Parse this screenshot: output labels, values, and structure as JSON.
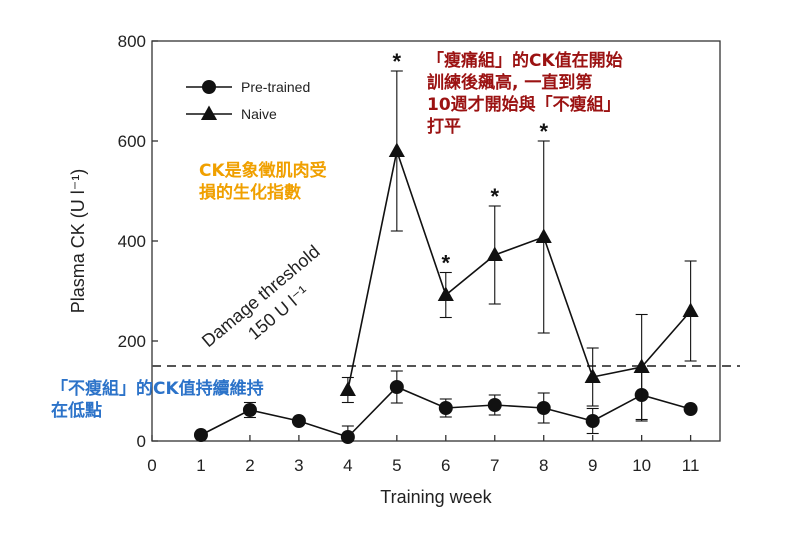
{
  "chart_data": {
    "type": "line",
    "xlabel": "Training week",
    "ylabel": "Plasma CK (U l⁻¹)",
    "xlim": [
      0,
      11.6
    ],
    "ylim": [
      0,
      800
    ],
    "xticks": [
      "0",
      "1",
      "2",
      "3",
      "4",
      "5",
      "6",
      "7",
      "8",
      "9",
      "10",
      "11"
    ],
    "yticks": [
      "0",
      "200",
      "400",
      "600",
      "800"
    ],
    "grid": false,
    "legend_position": "top-left",
    "series": [
      {
        "name": "Pre-trained",
        "marker": "circle",
        "x": [
          1,
          2,
          3,
          4,
          5,
          6,
          7,
          8,
          9,
          10,
          11
        ],
        "values": [
          12,
          62,
          40,
          8,
          108,
          66,
          72,
          66,
          40,
          92,
          64
        ],
        "errors": [
          5,
          15,
          5,
          22,
          32,
          18,
          20,
          30,
          25,
          52,
          5
        ]
      },
      {
        "name": "Naive",
        "marker": "triangle",
        "x": [
          4,
          5,
          6,
          7,
          8,
          9,
          10,
          11
        ],
        "values": [
          102,
          580,
          292,
          372,
          408,
          128,
          148,
          260
        ],
        "errors": [
          25,
          160,
          45,
          98,
          192,
          58,
          105,
          100
        ]
      }
    ],
    "significance_markers": [
      {
        "x": 5,
        "label": "*"
      },
      {
        "x": 6,
        "label": "*"
      },
      {
        "x": 7,
        "label": "*"
      },
      {
        "x": 8,
        "label": "*"
      }
    ],
    "threshold": {
      "value": 150,
      "line1": "Damage threshold",
      "line2": "150 U l⁻¹"
    },
    "annotations": {
      "red": "「瘦痛組」的CK值在開始\n訓練後飆高, 一直到第\n10週才開始與「不瘦組」\n打平",
      "orange": "CK是象徵肌肉受\n損的生化指數",
      "blue": "「不瘦組」的CK值持續維持\n在低點"
    },
    "colors": {
      "red_note": "#9b1212",
      "orange_note": "#f0a000",
      "blue_note": "#2c73c9",
      "lines": "#111111",
      "threshold": "#555555"
    }
  }
}
